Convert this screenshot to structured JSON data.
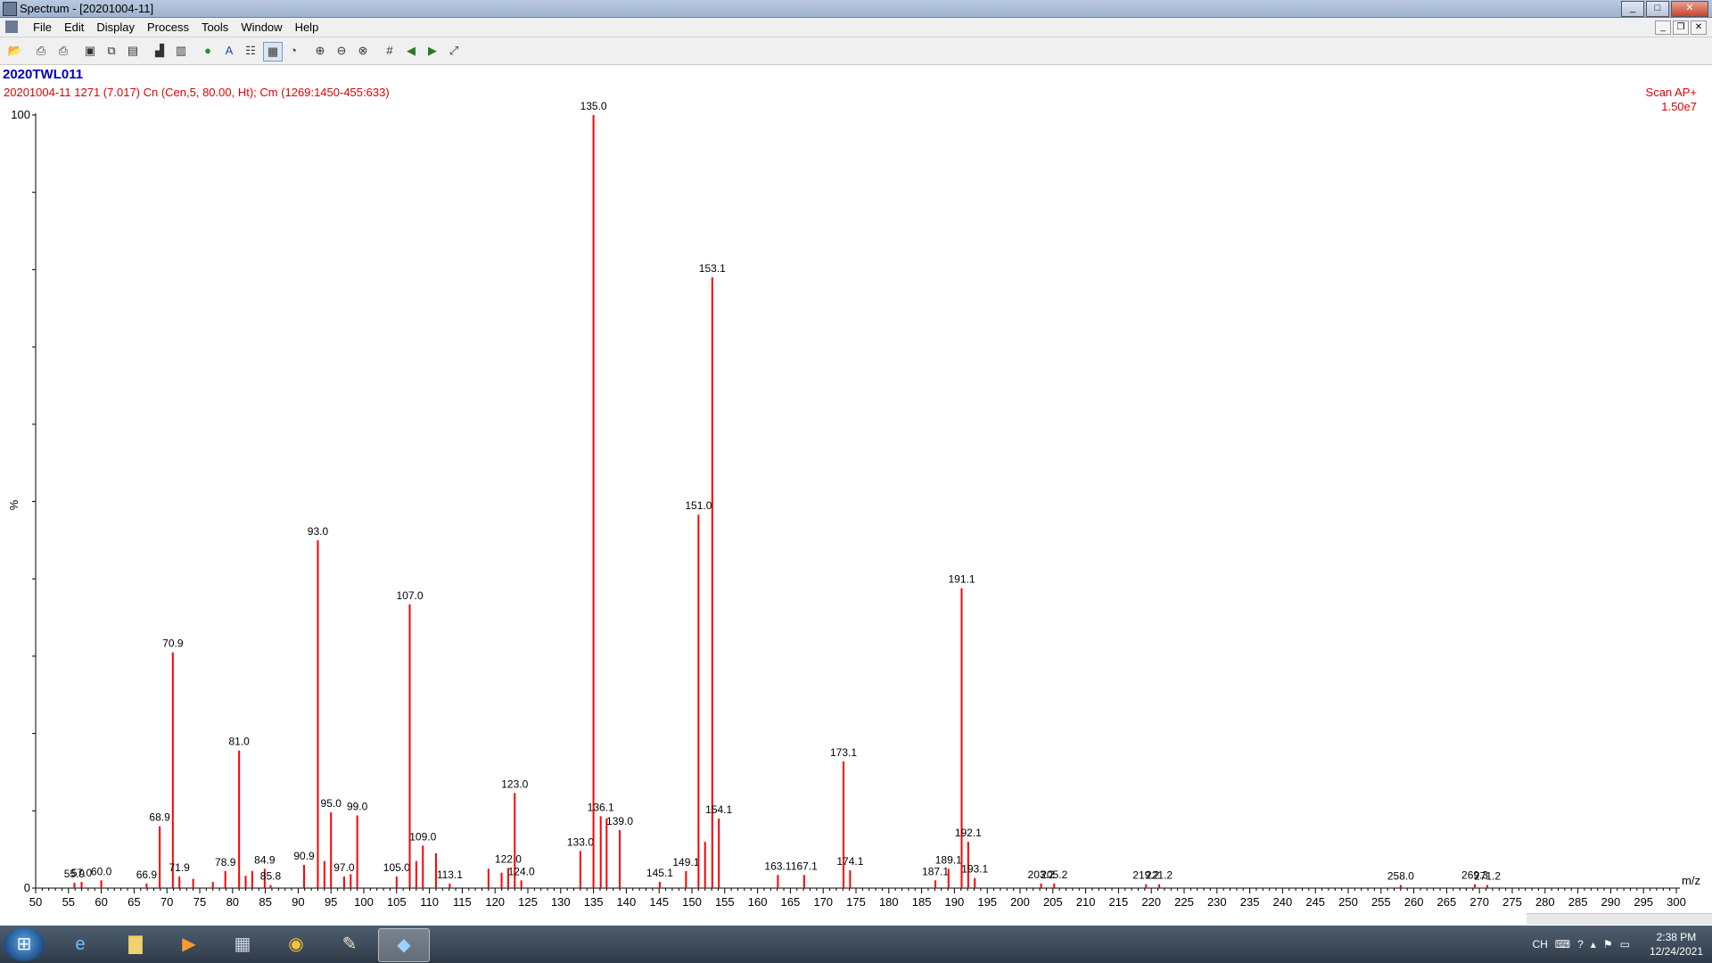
{
  "window": {
    "title": "Spectrum - [20201004-11]",
    "min": "_",
    "max": "□",
    "close": "✕"
  },
  "menu": [
    "File",
    "Edit",
    "Display",
    "Process",
    "Tools",
    "Window",
    "Help"
  ],
  "mdi": {
    "min": "_",
    "restore": "❐",
    "close": "✕"
  },
  "toolbar_icons": [
    "open-icon",
    "print-icon",
    "print-preview-icon",
    "copy-picture-icon",
    "copy-icon",
    "paste-icon",
    "spectrum-icon",
    "library-icon",
    "globe-icon",
    "text-icon",
    "peak-list-icon",
    "display-mode-icon",
    "timer-icon",
    "zoom-in-icon",
    "zoom-out-icon",
    "zoom-reset-icon",
    "grid-icon",
    "back-arrow-icon",
    "forward-arrow-icon",
    "fit-icon"
  ],
  "header": {
    "sample_name": "2020TWL011",
    "scan_info": "20201004-11  1271 (7.017) Cn (Cen,5, 80.00, Ht); Cm (1269:1450-455:633)",
    "scan_mode": "Scan AP+",
    "intensity": "1.50e7"
  },
  "chart_data": {
    "type": "bar",
    "xlabel": "m/z",
    "ylabel": "%",
    "xlim": [
      50,
      300
    ],
    "ylim": [
      0,
      100
    ],
    "x_ticks": [
      50,
      55,
      60,
      65,
      70,
      75,
      80,
      85,
      90,
      95,
      100,
      105,
      110,
      115,
      120,
      125,
      130,
      135,
      140,
      145,
      150,
      155,
      160,
      165,
      170,
      175,
      180,
      185,
      190,
      195,
      200,
      205,
      210,
      215,
      220,
      225,
      230,
      235,
      240,
      245,
      250,
      255,
      260,
      265,
      270,
      275,
      280,
      285,
      290,
      295,
      300
    ],
    "y_ticks": [
      0,
      100
    ],
    "color": "#ff0000",
    "peaks": [
      {
        "mz": 55.9,
        "intensity": 0.7,
        "label": "55.9"
      },
      {
        "mz": 57.0,
        "intensity": 0.8,
        "label": "57.0"
      },
      {
        "mz": 60.0,
        "intensity": 1.0,
        "label": "60.0"
      },
      {
        "mz": 66.9,
        "intensity": 0.6,
        "label": "66.9"
      },
      {
        "mz": 68.9,
        "intensity": 8.0,
        "label": "68.9"
      },
      {
        "mz": 70.9,
        "intensity": 30.5,
        "label": "70.9"
      },
      {
        "mz": 71.9,
        "intensity": 1.5,
        "label": "71.9"
      },
      {
        "mz": 74.0,
        "intensity": 1.2,
        "label": ""
      },
      {
        "mz": 77.0,
        "intensity": 0.8,
        "label": ""
      },
      {
        "mz": 78.9,
        "intensity": 2.2,
        "label": "78.9"
      },
      {
        "mz": 81.0,
        "intensity": 17.8,
        "label": "81.0"
      },
      {
        "mz": 82.0,
        "intensity": 1.6,
        "label": ""
      },
      {
        "mz": 83.0,
        "intensity": 2.2,
        "label": ""
      },
      {
        "mz": 84.9,
        "intensity": 2.5,
        "label": "84.9"
      },
      {
        "mz": 85.8,
        "intensity": 0.4,
        "label": "85.8"
      },
      {
        "mz": 90.9,
        "intensity": 3.0,
        "label": "90.9"
      },
      {
        "mz": 93.0,
        "intensity": 45.0,
        "label": "93.0"
      },
      {
        "mz": 94.0,
        "intensity": 3.5,
        "label": ""
      },
      {
        "mz": 95.0,
        "intensity": 9.8,
        "label": "95.0"
      },
      {
        "mz": 97.0,
        "intensity": 1.5,
        "label": "97.0"
      },
      {
        "mz": 98.0,
        "intensity": 1.8,
        "label": ""
      },
      {
        "mz": 99.0,
        "intensity": 9.4,
        "label": "99.0"
      },
      {
        "mz": 105.0,
        "intensity": 1.5,
        "label": "105.0"
      },
      {
        "mz": 107.0,
        "intensity": 36.7,
        "label": "107.0"
      },
      {
        "mz": 108.0,
        "intensity": 3.5,
        "label": ""
      },
      {
        "mz": 109.0,
        "intensity": 5.5,
        "label": "109.0"
      },
      {
        "mz": 111.0,
        "intensity": 4.5,
        "label": ""
      },
      {
        "mz": 113.1,
        "intensity": 0.6,
        "label": "113.1"
      },
      {
        "mz": 119.0,
        "intensity": 2.5,
        "label": ""
      },
      {
        "mz": 121.0,
        "intensity": 2.0,
        "label": ""
      },
      {
        "mz": 122.0,
        "intensity": 2.6,
        "label": "122.0"
      },
      {
        "mz": 123.0,
        "intensity": 12.3,
        "label": "123.0"
      },
      {
        "mz": 124.0,
        "intensity": 1.0,
        "label": "124.0"
      },
      {
        "mz": 133.0,
        "intensity": 4.8,
        "label": "133.0"
      },
      {
        "mz": 135.0,
        "intensity": 100.0,
        "label": "135.0"
      },
      {
        "mz": 136.1,
        "intensity": 9.3,
        "label": "136.1"
      },
      {
        "mz": 137.0,
        "intensity": 9.0,
        "label": ""
      },
      {
        "mz": 139.0,
        "intensity": 7.5,
        "label": "139.0"
      },
      {
        "mz": 145.1,
        "intensity": 0.8,
        "label": "145.1"
      },
      {
        "mz": 149.1,
        "intensity": 2.2,
        "label": "149.1"
      },
      {
        "mz": 151.0,
        "intensity": 48.3,
        "label": "151.0"
      },
      {
        "mz": 152.0,
        "intensity": 6.0,
        "label": ""
      },
      {
        "mz": 153.1,
        "intensity": 79.0,
        "label": "153.1"
      },
      {
        "mz": 154.1,
        "intensity": 9.0,
        "label": "154.1"
      },
      {
        "mz": 163.1,
        "intensity": 1.7,
        "label": "163.1"
      },
      {
        "mz": 167.1,
        "intensity": 1.7,
        "label": "167.1"
      },
      {
        "mz": 173.1,
        "intensity": 16.4,
        "label": "173.1"
      },
      {
        "mz": 174.1,
        "intensity": 2.3,
        "label": "174.1"
      },
      {
        "mz": 187.1,
        "intensity": 1.0,
        "label": "187.1"
      },
      {
        "mz": 189.1,
        "intensity": 2.5,
        "label": "189.1"
      },
      {
        "mz": 191.1,
        "intensity": 38.8,
        "label": "191.1"
      },
      {
        "mz": 192.1,
        "intensity": 6.0,
        "label": "192.1"
      },
      {
        "mz": 193.1,
        "intensity": 1.3,
        "label": "193.1"
      },
      {
        "mz": 203.2,
        "intensity": 0.6,
        "label": "203.2"
      },
      {
        "mz": 205.2,
        "intensity": 0.6,
        "label": "205.2"
      },
      {
        "mz": 219.2,
        "intensity": 0.5,
        "label": "219.2"
      },
      {
        "mz": 221.2,
        "intensity": 0.5,
        "label": "221.2"
      },
      {
        "mz": 258.0,
        "intensity": 0.4,
        "label": "258.0"
      },
      {
        "mz": 269.3,
        "intensity": 0.5,
        "label": "269.3"
      },
      {
        "mz": 271.2,
        "intensity": 0.4,
        "label": "271.2"
      }
    ]
  },
  "taskbar": {
    "apps": [
      "ie-icon",
      "explorer-icon",
      "media-player-icon",
      "calculator-icon",
      "chrome-icon",
      "paint-icon",
      "masslynx-icon"
    ],
    "tray_lang": "CH",
    "time": "2:38 PM",
    "date": "12/24/2021"
  }
}
